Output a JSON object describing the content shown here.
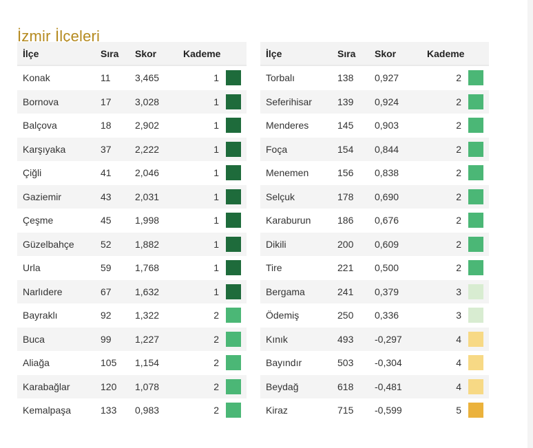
{
  "title": "İzmir İlçeleri",
  "headers": {
    "name": "İlçe",
    "rank": "Sıra",
    "score": "Skor",
    "tier": "Kademe"
  },
  "tier_colors": {
    "1": "#1e6b3b",
    "2": "#4bb776",
    "3": "#d8ecd1",
    "4": "#f7d985",
    "5": "#ebb23c"
  },
  "left_rows": [
    {
      "name": "Konak",
      "rank": "11",
      "score": "3,465",
      "tier": "1"
    },
    {
      "name": "Bornova",
      "rank": "17",
      "score": "3,028",
      "tier": "1"
    },
    {
      "name": "Balçova",
      "rank": "18",
      "score": "2,902",
      "tier": "1"
    },
    {
      "name": "Karşıyaka",
      "rank": "37",
      "score": "2,222",
      "tier": "1"
    },
    {
      "name": "Çiğli",
      "rank": "41",
      "score": "2,046",
      "tier": "1"
    },
    {
      "name": "Gaziemir",
      "rank": "43",
      "score": "2,031",
      "tier": "1"
    },
    {
      "name": "Çeşme",
      "rank": "45",
      "score": "1,998",
      "tier": "1"
    },
    {
      "name": "Güzelbahçe",
      "rank": "52",
      "score": "1,882",
      "tier": "1"
    },
    {
      "name": "Urla",
      "rank": "59",
      "score": "1,768",
      "tier": "1"
    },
    {
      "name": "Narlıdere",
      "rank": "67",
      "score": "1,632",
      "tier": "1"
    },
    {
      "name": "Bayraklı",
      "rank": "92",
      "score": "1,322",
      "tier": "2"
    },
    {
      "name": "Buca",
      "rank": "99",
      "score": "1,227",
      "tier": "2"
    },
    {
      "name": "Aliağa",
      "rank": "105",
      "score": "1,154",
      "tier": "2"
    },
    {
      "name": "Karabağlar",
      "rank": "120",
      "score": "1,078",
      "tier": "2"
    },
    {
      "name": "Kemalpaşa",
      "rank": "133",
      "score": "0,983",
      "tier": "2"
    }
  ],
  "right_rows": [
    {
      "name": "Torbalı",
      "rank": "138",
      "score": "0,927",
      "tier": "2"
    },
    {
      "name": "Seferihisar",
      "rank": "139",
      "score": "0,924",
      "tier": "2"
    },
    {
      "name": "Menderes",
      "rank": "145",
      "score": "0,903",
      "tier": "2"
    },
    {
      "name": "Foça",
      "rank": "154",
      "score": "0,844",
      "tier": "2"
    },
    {
      "name": "Menemen",
      "rank": "156",
      "score": "0,838",
      "tier": "2"
    },
    {
      "name": "Selçuk",
      "rank": "178",
      "score": "0,690",
      "tier": "2"
    },
    {
      "name": "Karaburun",
      "rank": "186",
      "score": "0,676",
      "tier": "2"
    },
    {
      "name": "Dikili",
      "rank": "200",
      "score": "0,609",
      "tier": "2"
    },
    {
      "name": "Tire",
      "rank": "221",
      "score": "0,500",
      "tier": "2"
    },
    {
      "name": "Bergama",
      "rank": "241",
      "score": "0,379",
      "tier": "3"
    },
    {
      "name": "Ödemiş",
      "rank": "250",
      "score": "0,336",
      "tier": "3"
    },
    {
      "name": "Kınık",
      "rank": "493",
      "score": "-0,297",
      "tier": "4"
    },
    {
      "name": "Bayındır",
      "rank": "503",
      "score": "-0,304",
      "tier": "4"
    },
    {
      "name": "Beydağ",
      "rank": "618",
      "score": "-0,481",
      "tier": "4"
    },
    {
      "name": "Kiraz",
      "rank": "715",
      "score": "-0,599",
      "tier": "5"
    }
  ]
}
